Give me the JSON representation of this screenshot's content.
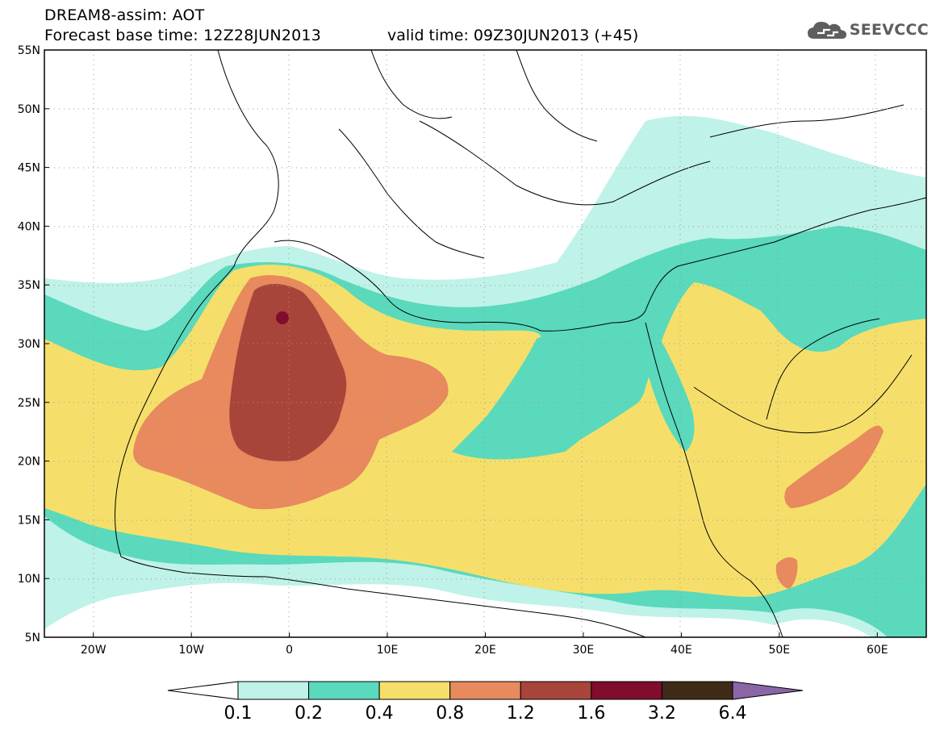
{
  "header": {
    "title_line1": "DREAM8-assim: AOT",
    "title_line2": "Forecast base time: 12Z28JUN2013",
    "valid_time": "valid time: 09Z30JUN2013 (+45)",
    "logo_text": "SEEVCCC",
    "logo_icon": "cloud-icon"
  },
  "map": {
    "lon_range": [
      -25,
      65
    ],
    "lat_range": [
      5,
      55
    ],
    "lat_ticks": [
      "55N",
      "50N",
      "45N",
      "40N",
      "35N",
      "30N",
      "25N",
      "20N",
      "15N",
      "10N",
      "5N"
    ],
    "lon_ticks": [
      "20W",
      "10W",
      "0",
      "10E",
      "20E",
      "30E",
      "40E",
      "50E",
      "60E"
    ],
    "grid": "dotted"
  },
  "legend": {
    "thresholds": [
      "0.1",
      "0.2",
      "0.4",
      "0.8",
      "1.2",
      "1.6",
      "3.2",
      "6.4"
    ],
    "colors": [
      "#ffffff",
      "#bff2e8",
      "#5ad9bc",
      "#f5df6a",
      "#e8895e",
      "#a8453a",
      "#800d2e",
      "#3f2a17",
      "#8a66a6"
    ]
  }
}
